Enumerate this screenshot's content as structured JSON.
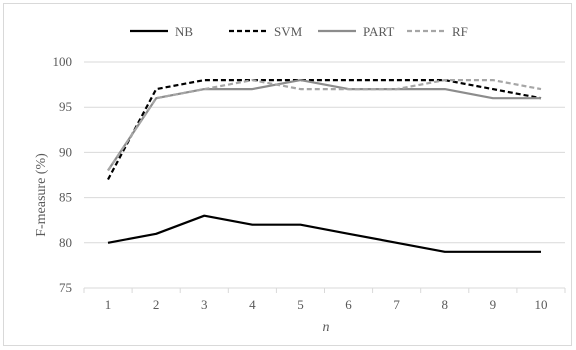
{
  "chart_data": {
    "type": "line",
    "title": "",
    "xlabel": "n",
    "ylabel": "F-measure (%)",
    "x": [
      1,
      2,
      3,
      4,
      5,
      6,
      7,
      8,
      9,
      10
    ],
    "ylim": [
      75,
      100
    ],
    "yticks": [
      75,
      80,
      85,
      90,
      95,
      100
    ],
    "grid": "horizontal",
    "legend_position": "top",
    "series": [
      {
        "name": "NB",
        "color": "#000000",
        "dash": "solid",
        "values": [
          80,
          81,
          83,
          82,
          82,
          81,
          80,
          79,
          79,
          79
        ]
      },
      {
        "name": "SVM",
        "color": "#000000",
        "dash": "dashed",
        "values": [
          87,
          97,
          98,
          98,
          98,
          98,
          98,
          98,
          97,
          96
        ]
      },
      {
        "name": "PART",
        "color": "#8c8c8c",
        "dash": "solid",
        "values": [
          88,
          96,
          97,
          97,
          98,
          97,
          97,
          97,
          96,
          96
        ]
      },
      {
        "name": "RF",
        "color": "#a6a6a6",
        "dash": "dashed",
        "values": [
          88,
          96,
          97,
          98,
          97,
          97,
          97,
          98,
          98,
          97
        ]
      }
    ]
  }
}
